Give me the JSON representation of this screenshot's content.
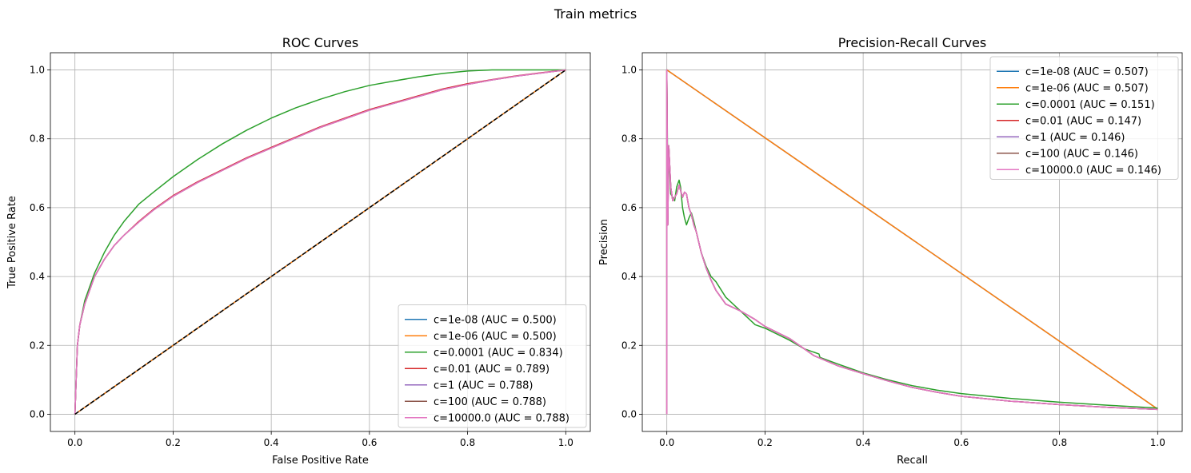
{
  "suptitle": "Train metrics",
  "colors": {
    "c1e-08": "#1f77b4",
    "c1e-06": "#ff7f0e",
    "c0.0001": "#2ca02c",
    "c0.01": "#d62728",
    "c1": "#9467bd",
    "c100": "#8c564b",
    "c10000.0": "#e377c2",
    "grid": "#b0b0b0",
    "diagonal": "#000000"
  },
  "chart_data": [
    {
      "type": "line",
      "title": "ROC Curves",
      "xlabel": "False Positive Rate",
      "ylabel": "True Positive Rate",
      "xlim": [
        -0.05,
        1.05
      ],
      "ylim": [
        -0.05,
        1.05
      ],
      "xticks": [
        0.0,
        0.2,
        0.4,
        0.6,
        0.8,
        1.0
      ],
      "yticks": [
        0.0,
        0.2,
        0.4,
        0.6,
        0.8,
        1.0
      ],
      "tick_labels_x": [
        "0.0",
        "0.2",
        "0.4",
        "0.6",
        "0.8",
        "1.0"
      ],
      "tick_labels_y": [
        "0.0",
        "0.2",
        "0.4",
        "0.6",
        "0.8",
        "1.0"
      ],
      "grid": true,
      "legend_loc": "lower-right",
      "reference_line": {
        "style": "dashed",
        "x": [
          0,
          1
        ],
        "y": [
          0,
          1
        ]
      },
      "series": [
        {
          "name": "c=1e-08 (AUC = 0.500)",
          "key": "c1e-08",
          "x": [
            0,
            1
          ],
          "y": [
            0,
            1
          ]
        },
        {
          "name": "c=1e-06 (AUC = 0.500)",
          "key": "c1e-06",
          "x": [
            0,
            1
          ],
          "y": [
            0,
            1
          ]
        },
        {
          "name": "c=0.0001 (AUC = 0.834)",
          "key": "c0.0001",
          "x": [
            0,
            0.005,
            0.01,
            0.02,
            0.04,
            0.06,
            0.08,
            0.1,
            0.13,
            0.16,
            0.2,
            0.25,
            0.3,
            0.35,
            0.4,
            0.45,
            0.5,
            0.55,
            0.6,
            0.65,
            0.7,
            0.75,
            0.8,
            0.85,
            0.9,
            0.95,
            1.0
          ],
          "y": [
            0,
            0.2,
            0.26,
            0.33,
            0.41,
            0.47,
            0.52,
            0.56,
            0.61,
            0.645,
            0.69,
            0.74,
            0.785,
            0.825,
            0.86,
            0.89,
            0.915,
            0.937,
            0.955,
            0.968,
            0.98,
            0.99,
            0.997,
            1.0,
            1.0,
            1.0,
            1.0
          ]
        },
        {
          "name": "c=0.01 (AUC = 0.789)",
          "key": "c0.01",
          "x": [
            0,
            0.005,
            0.01,
            0.02,
            0.04,
            0.06,
            0.08,
            0.1,
            0.13,
            0.16,
            0.2,
            0.25,
            0.3,
            0.35,
            0.4,
            0.45,
            0.5,
            0.55,
            0.6,
            0.65,
            0.7,
            0.75,
            0.8,
            0.85,
            0.9,
            0.95,
            1.0
          ],
          "y": [
            0,
            0.2,
            0.26,
            0.32,
            0.4,
            0.45,
            0.49,
            0.52,
            0.56,
            0.595,
            0.635,
            0.675,
            0.71,
            0.745,
            0.775,
            0.805,
            0.835,
            0.86,
            0.885,
            0.905,
            0.925,
            0.945,
            0.96,
            0.972,
            0.983,
            0.992,
            1.0
          ]
        },
        {
          "name": "c=1 (AUC = 0.788)",
          "key": "c1",
          "x": [
            0,
            0.005,
            0.01,
            0.02,
            0.04,
            0.06,
            0.08,
            0.1,
            0.13,
            0.16,
            0.2,
            0.25,
            0.3,
            0.35,
            0.4,
            0.45,
            0.5,
            0.55,
            0.6,
            0.65,
            0.7,
            0.75,
            0.8,
            0.85,
            0.9,
            0.95,
            1.0
          ],
          "y": [
            0,
            0.2,
            0.26,
            0.32,
            0.4,
            0.45,
            0.49,
            0.52,
            0.558,
            0.593,
            0.633,
            0.673,
            0.708,
            0.743,
            0.773,
            0.803,
            0.833,
            0.858,
            0.883,
            0.903,
            0.923,
            0.943,
            0.958,
            0.971,
            0.982,
            0.991,
            1.0
          ]
        },
        {
          "name": "c=100 (AUC = 0.788)",
          "key": "c100",
          "x": [
            0,
            0.005,
            0.01,
            0.02,
            0.04,
            0.06,
            0.08,
            0.1,
            0.13,
            0.16,
            0.2,
            0.25,
            0.3,
            0.35,
            0.4,
            0.45,
            0.5,
            0.55,
            0.6,
            0.65,
            0.7,
            0.75,
            0.8,
            0.85,
            0.9,
            0.95,
            1.0
          ],
          "y": [
            0,
            0.2,
            0.26,
            0.32,
            0.4,
            0.45,
            0.49,
            0.52,
            0.558,
            0.593,
            0.633,
            0.673,
            0.708,
            0.743,
            0.773,
            0.803,
            0.833,
            0.858,
            0.883,
            0.903,
            0.923,
            0.943,
            0.958,
            0.971,
            0.982,
            0.991,
            1.0
          ]
        },
        {
          "name": "c=10000.0 (AUC = 0.788)",
          "key": "c10000.0",
          "x": [
            0,
            0.005,
            0.01,
            0.02,
            0.04,
            0.06,
            0.08,
            0.1,
            0.13,
            0.16,
            0.2,
            0.25,
            0.3,
            0.35,
            0.4,
            0.45,
            0.5,
            0.55,
            0.6,
            0.65,
            0.7,
            0.75,
            0.8,
            0.85,
            0.9,
            0.95,
            1.0
          ],
          "y": [
            0,
            0.2,
            0.26,
            0.32,
            0.4,
            0.45,
            0.49,
            0.52,
            0.558,
            0.593,
            0.633,
            0.673,
            0.708,
            0.743,
            0.773,
            0.803,
            0.833,
            0.858,
            0.883,
            0.903,
            0.923,
            0.943,
            0.958,
            0.971,
            0.982,
            0.991,
            1.0
          ]
        }
      ]
    },
    {
      "type": "line",
      "title": "Precision-Recall Curves",
      "xlabel": "Recall",
      "ylabel": "Precision",
      "xlim": [
        -0.05,
        1.05
      ],
      "ylim": [
        -0.05,
        1.05
      ],
      "xticks": [
        0.0,
        0.2,
        0.4,
        0.6,
        0.8,
        1.0
      ],
      "yticks": [
        0.0,
        0.2,
        0.4,
        0.6,
        0.8,
        1.0
      ],
      "tick_labels_x": [
        "0.0",
        "0.2",
        "0.4",
        "0.6",
        "0.8",
        "1.0"
      ],
      "tick_labels_y": [
        "0.0",
        "0.2",
        "0.4",
        "0.6",
        "0.8",
        "1.0"
      ],
      "grid": true,
      "legend_loc": "upper-right",
      "series": [
        {
          "name": "c=1e-08 (AUC = 0.507)",
          "key": "c1e-08",
          "x": [
            0,
            1
          ],
          "y": [
            1.0,
            0.015
          ]
        },
        {
          "name": "c=1e-06 (AUC = 0.507)",
          "key": "c1e-06",
          "x": [
            0,
            1
          ],
          "y": [
            1.0,
            0.015
          ]
        },
        {
          "name": "c=0.0001 (AUC = 0.151)",
          "key": "c0.0001",
          "x": [
            0,
            0,
            0.002,
            0.004,
            0.006,
            0.008,
            0.012,
            0.016,
            0.02,
            0.025,
            0.028,
            0.032,
            0.036,
            0.04,
            0.045,
            0.05,
            0.055,
            0.06,
            0.07,
            0.08,
            0.09,
            0.1,
            0.12,
            0.15,
            0.18,
            0.2,
            0.25,
            0.28,
            0.3,
            0.31,
            0.312,
            0.35,
            0.4,
            0.45,
            0.5,
            0.55,
            0.6,
            0.7,
            0.8,
            0.9,
            1.0
          ],
          "y": [
            0,
            1.0,
            0.65,
            0.75,
            0.7,
            0.64,
            0.63,
            0.62,
            0.66,
            0.68,
            0.66,
            0.6,
            0.57,
            0.55,
            0.57,
            0.585,
            0.56,
            0.53,
            0.47,
            0.43,
            0.4,
            0.385,
            0.34,
            0.3,
            0.26,
            0.25,
            0.215,
            0.19,
            0.18,
            0.175,
            0.165,
            0.145,
            0.12,
            0.1,
            0.083,
            0.07,
            0.06,
            0.046,
            0.035,
            0.026,
            0.018
          ]
        },
        {
          "name": "c=0.01 (AUC = 0.147)",
          "key": "c0.01",
          "x": [
            0,
            0,
            0.002,
            0.004,
            0.006,
            0.008,
            0.012,
            0.016,
            0.02,
            0.025,
            0.028,
            0.032,
            0.036,
            0.04,
            0.045,
            0.05,
            0.055,
            0.06,
            0.07,
            0.08,
            0.09,
            0.1,
            0.12,
            0.15,
            0.18,
            0.2,
            0.25,
            0.3,
            0.35,
            0.4,
            0.45,
            0.5,
            0.55,
            0.6,
            0.7,
            0.8,
            0.9,
            1.0
          ],
          "y": [
            0,
            1.0,
            0.55,
            0.78,
            0.72,
            0.66,
            0.62,
            0.63,
            0.64,
            0.665,
            0.65,
            0.63,
            0.645,
            0.64,
            0.6,
            0.58,
            0.55,
            0.53,
            0.47,
            0.425,
            0.39,
            0.36,
            0.32,
            0.3,
            0.275,
            0.255,
            0.22,
            0.17,
            0.14,
            0.118,
            0.097,
            0.078,
            0.064,
            0.052,
            0.038,
            0.028,
            0.02,
            0.014
          ]
        },
        {
          "name": "c=1 (AUC = 0.146)",
          "key": "c1",
          "x": [
            0,
            0,
            0.002,
            0.004,
            0.006,
            0.008,
            0.012,
            0.016,
            0.02,
            0.025,
            0.028,
            0.032,
            0.036,
            0.04,
            0.045,
            0.05,
            0.055,
            0.06,
            0.07,
            0.08,
            0.09,
            0.1,
            0.12,
            0.15,
            0.18,
            0.2,
            0.25,
            0.3,
            0.35,
            0.4,
            0.45,
            0.5,
            0.55,
            0.6,
            0.7,
            0.8,
            0.9,
            1.0
          ],
          "y": [
            0,
            1.0,
            0.55,
            0.78,
            0.72,
            0.66,
            0.62,
            0.63,
            0.64,
            0.665,
            0.65,
            0.63,
            0.645,
            0.64,
            0.6,
            0.58,
            0.55,
            0.53,
            0.47,
            0.425,
            0.39,
            0.36,
            0.32,
            0.3,
            0.275,
            0.255,
            0.22,
            0.17,
            0.14,
            0.118,
            0.097,
            0.078,
            0.064,
            0.052,
            0.038,
            0.028,
            0.02,
            0.014
          ]
        },
        {
          "name": "c=100 (AUC = 0.146)",
          "key": "c100",
          "x": [
            0,
            0,
            0.002,
            0.004,
            0.006,
            0.008,
            0.012,
            0.016,
            0.02,
            0.025,
            0.028,
            0.032,
            0.036,
            0.04,
            0.045,
            0.05,
            0.055,
            0.06,
            0.07,
            0.08,
            0.09,
            0.1,
            0.12,
            0.15,
            0.18,
            0.2,
            0.25,
            0.3,
            0.35,
            0.4,
            0.45,
            0.5,
            0.55,
            0.6,
            0.7,
            0.8,
            0.9,
            1.0
          ],
          "y": [
            0,
            1.0,
            0.55,
            0.78,
            0.72,
            0.66,
            0.62,
            0.63,
            0.64,
            0.665,
            0.65,
            0.63,
            0.645,
            0.64,
            0.6,
            0.58,
            0.55,
            0.53,
            0.47,
            0.425,
            0.39,
            0.36,
            0.32,
            0.3,
            0.275,
            0.255,
            0.22,
            0.17,
            0.14,
            0.118,
            0.097,
            0.078,
            0.064,
            0.052,
            0.038,
            0.028,
            0.02,
            0.014
          ]
        },
        {
          "name": "c=10000.0 (AUC = 0.146)",
          "key": "c10000.0",
          "x": [
            0,
            0,
            0.002,
            0.004,
            0.006,
            0.008,
            0.012,
            0.016,
            0.02,
            0.025,
            0.028,
            0.032,
            0.036,
            0.04,
            0.045,
            0.05,
            0.055,
            0.06,
            0.07,
            0.08,
            0.09,
            0.1,
            0.12,
            0.15,
            0.18,
            0.2,
            0.25,
            0.3,
            0.35,
            0.4,
            0.45,
            0.5,
            0.55,
            0.6,
            0.7,
            0.8,
            0.9,
            1.0
          ],
          "y": [
            0,
            1.0,
            0.55,
            0.78,
            0.72,
            0.66,
            0.62,
            0.63,
            0.64,
            0.665,
            0.65,
            0.63,
            0.645,
            0.64,
            0.6,
            0.58,
            0.55,
            0.53,
            0.47,
            0.425,
            0.39,
            0.36,
            0.32,
            0.3,
            0.275,
            0.255,
            0.22,
            0.17,
            0.14,
            0.118,
            0.097,
            0.078,
            0.064,
            0.052,
            0.038,
            0.028,
            0.02,
            0.014
          ]
        }
      ]
    }
  ]
}
